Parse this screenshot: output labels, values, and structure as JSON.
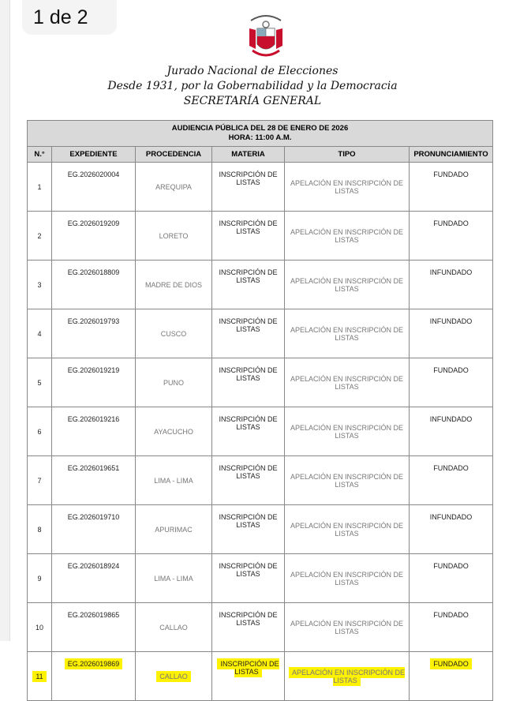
{
  "page_indicator": "1 de 2",
  "header": {
    "emblem": "REPUBLICA DEL PERU",
    "line1": "Jurado Nacional de Elecciones",
    "line2": "Desde 1931, por la Gobernabilidad y la Democracia",
    "line3": "SECRETARÍA GENERAL"
  },
  "table": {
    "title1": "AUDIENCIA PÚBLICA DEL 28 DE ENERO DE 2026",
    "title2": "HORA: 11:00 A.M.",
    "columns": [
      "N.°",
      "EXPEDIENTE",
      "PROCEDENCIA",
      "MATERIA",
      "TIPO",
      "PRONUNCIAMIENTO"
    ],
    "highlight_color": "#fff200",
    "rows": [
      {
        "n": "1",
        "exp": "EG.2026020004",
        "proc": "AREQUIPA",
        "mat": "INSCRIPCIÓN DE LISTAS",
        "tipo": "APELACIÓN EN INSCRIPCIÓN DE LISTAS",
        "pron": "FUNDADO"
      },
      {
        "n": "2",
        "exp": "EG.2026019209",
        "proc": "LORETO",
        "mat": "INSCRIPCIÓN DE LISTAS",
        "tipo": "APELACIÓN EN INSCRIPCIÓN DE LISTAS",
        "pron": "FUNDADO"
      },
      {
        "n": "3",
        "exp": "EG.2026018809",
        "proc": "MADRE DE DIOS",
        "mat": "INSCRIPCIÓN DE LISTAS",
        "tipo": "APELACIÓN EN INSCRIPCIÓN DE LISTAS",
        "pron": "INFUNDADO"
      },
      {
        "n": "4",
        "exp": "EG.2026019793",
        "proc": "CUSCO",
        "mat": "INSCRIPCIÓN DE LISTAS",
        "tipo": "APELACIÓN EN INSCRIPCIÓN DE LISTAS",
        "pron": "INFUNDADO"
      },
      {
        "n": "5",
        "exp": "EG.2026019219",
        "proc": "PUNO",
        "mat": "INSCRIPCIÓN DE LISTAS",
        "tipo": "APELACIÓN EN INSCRIPCIÓN DE LISTAS",
        "pron": "FUNDADO"
      },
      {
        "n": "6",
        "exp": "EG.2026019216",
        "proc": "AYACUCHO",
        "mat": "INSCRIPCIÓN DE LISTAS",
        "tipo": "APELACIÓN EN INSCRIPCIÓN DE LISTAS",
        "pron": "INFUNDADO"
      },
      {
        "n": "7",
        "exp": "EG.2026019651",
        "proc": "LIMA - LIMA",
        "mat": "INSCRIPCIÓN DE LISTAS",
        "tipo": "APELACIÓN EN INSCRIPCIÓN DE LISTAS",
        "pron": "FUNDADO"
      },
      {
        "n": "8",
        "exp": "EG.2026019710",
        "proc": "APURIMAC",
        "mat": "INSCRIPCIÓN DE LISTAS",
        "tipo": "APELACIÓN EN INSCRIPCIÓN DE LISTAS",
        "pron": "INFUNDADO"
      },
      {
        "n": "9",
        "exp": "EG.2026018924",
        "proc": "LIMA - LIMA",
        "mat": "INSCRIPCIÓN DE LISTAS",
        "tipo": "APELACIÓN EN INSCRIPCIÓN DE LISTAS",
        "pron": "FUNDADO"
      },
      {
        "n": "10",
        "exp": "EG.2026019865",
        "proc": "CALLAO",
        "mat": "INSCRIPCIÓN DE LISTAS",
        "tipo": "APELACIÓN EN INSCRIPCIÓN DE LISTAS",
        "pron": "FUNDADO"
      },
      {
        "n": "11",
        "exp": "EG.2026019869",
        "proc": "CALLAO",
        "mat": "INSCRIPCIÓN DE LISTAS",
        "tipo": "APELACIÓN EN INSCRIPCIÓN DE LISTAS",
        "pron": "FUNDADO",
        "highlighted": true
      }
    ]
  }
}
